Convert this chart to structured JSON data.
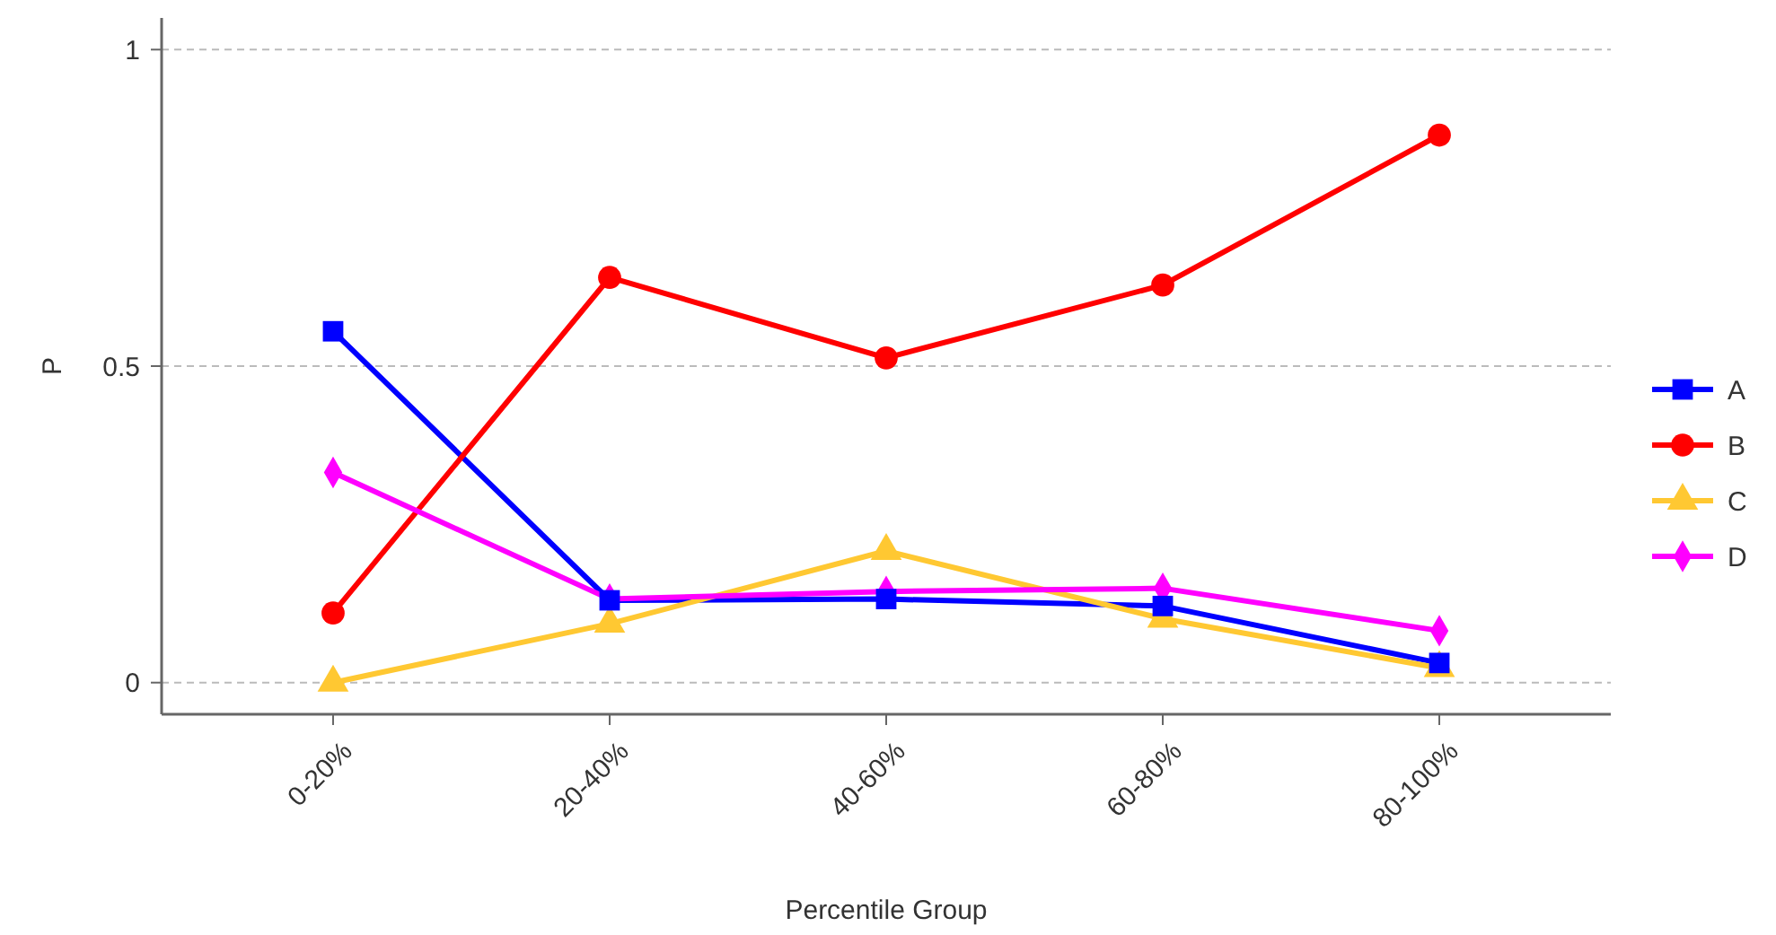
{
  "chart_data": {
    "type": "line",
    "xlabel": "Percentile Group",
    "ylabel": "P",
    "categories": [
      "0-20%",
      "20-40%",
      "40-60%",
      "60-80%",
      "80-100%"
    ],
    "series": [
      {
        "name": "A",
        "color": "#0000ff",
        "marker": "square",
        "values": [
          0.555,
          0.13,
          0.132,
          0.121,
          0.031
        ]
      },
      {
        "name": "B",
        "color": "#ff0000",
        "marker": "circle",
        "values": [
          0.11,
          0.64,
          0.513,
          0.628,
          0.865
        ]
      },
      {
        "name": "C",
        "color": "#ffc832",
        "marker": "triangle",
        "values": [
          0,
          0.093,
          0.208,
          0.101,
          0.023
        ]
      },
      {
        "name": "D",
        "color": "#ff00ff",
        "marker": "diamond",
        "values": [
          0.332,
          0.132,
          0.144,
          0.149,
          0.082
        ]
      }
    ],
    "ylim": [
      -0.05,
      1.05
    ],
    "yticks": [
      0,
      0.5,
      1
    ],
    "grid": "y",
    "legend": "right",
    "line_style": "solid"
  }
}
